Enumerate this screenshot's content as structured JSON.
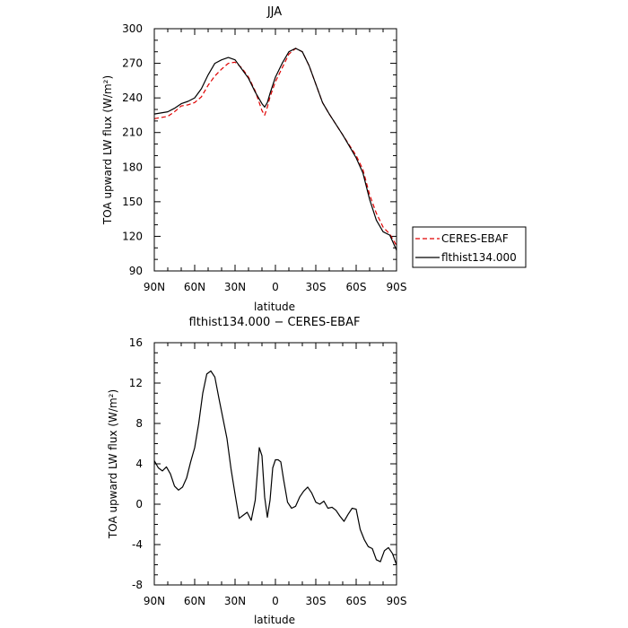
{
  "chart_data": [
    {
      "type": "line",
      "title": "JJA",
      "xlabel": "latitude",
      "ylabel": "TOA upward LW flux (W/m²)",
      "xlim": [
        90,
        -90
      ],
      "ylim": [
        90,
        300
      ],
      "x_tick_values": [
        90,
        60,
        30,
        0,
        -30,
        -60,
        -90
      ],
      "x_tick_labels": [
        "90N",
        "60N",
        "30N",
        "0",
        "30S",
        "60S",
        "90S"
      ],
      "y_ticks": [
        90,
        120,
        150,
        180,
        210,
        240,
        270,
        300
      ],
      "legend_position": "right",
      "series": [
        {
          "name": "CERES-EBAF",
          "color": "#e00000",
          "dash": "dashed",
          "x": [
            90,
            85,
            80,
            75,
            70,
            65,
            60,
            55,
            50,
            45,
            40,
            35,
            30,
            25,
            20,
            15,
            10,
            8,
            6,
            4,
            0,
            -5,
            -10,
            -15,
            -20,
            -25,
            -30,
            -35,
            -40,
            -45,
            -50,
            -55,
            -60,
            -65,
            -70,
            -75,
            -80,
            -85,
            -90
          ],
          "y": [
            222,
            223,
            224,
            228,
            233,
            234,
            236,
            241,
            251,
            259,
            265,
            270,
            271,
            266,
            258,
            246,
            229,
            225,
            232,
            241,
            254,
            266,
            278,
            283,
            280,
            268,
            252,
            236,
            226,
            217,
            208,
            199,
            190,
            178,
            156,
            140,
            128,
            122,
            112
          ]
        },
        {
          "name": "flthist134.000",
          "color": "#000000",
          "dash": "solid",
          "x": [
            90,
            85,
            80,
            75,
            70,
            65,
            60,
            55,
            50,
            45,
            40,
            35,
            30,
            25,
            20,
            15,
            10,
            8,
            6,
            4,
            0,
            -5,
            -10,
            -15,
            -20,
            -25,
            -30,
            -35,
            -40,
            -45,
            -50,
            -55,
            -60,
            -65,
            -70,
            -75,
            -80,
            -85,
            -90
          ],
          "y": [
            226,
            227,
            228,
            231,
            235,
            237,
            240,
            248,
            260,
            270,
            273,
            275,
            273,
            265,
            257,
            245,
            235,
            232,
            236,
            244,
            258,
            270,
            280,
            283,
            280,
            268,
            252,
            236,
            226,
            217,
            208,
            198,
            188,
            175,
            152,
            134,
            124,
            121,
            108
          ]
        }
      ]
    },
    {
      "type": "line",
      "title": "flthist134.000 − CERES-EBAF",
      "xlabel": "latitude",
      "ylabel": "TOA upward LW flux (W/m²)",
      "xlim": [
        90,
        -90
      ],
      "ylim": [
        -8,
        16
      ],
      "x_tick_values": [
        90,
        60,
        30,
        0,
        -30,
        -60,
        -90
      ],
      "x_tick_labels": [
        "90N",
        "60N",
        "30N",
        "0",
        "30S",
        "60S",
        "90S"
      ],
      "y_ticks": [
        -8,
        -4,
        0,
        4,
        8,
        12,
        16
      ],
      "series": [
        {
          "color": "#000000",
          "x": [
            90,
            87,
            84,
            81,
            78,
            75,
            72,
            69,
            66,
            63,
            60,
            57,
            54,
            51,
            48,
            45,
            42,
            39,
            36,
            33,
            30,
            27,
            24,
            21,
            18,
            15,
            12,
            10,
            8,
            6,
            4,
            2,
            0,
            -2,
            -4,
            -6,
            -9,
            -12,
            -15,
            -18,
            -21,
            -24,
            -27,
            -30,
            -33,
            -36,
            -39,
            -42,
            -45,
            -48,
            -51,
            -54,
            -57,
            -60,
            -63,
            -66,
            -69,
            -72,
            -75,
            -78,
            -81,
            -84,
            -87,
            -90
          ],
          "y": [
            4.3,
            3.6,
            3.3,
            3.7,
            3.0,
            1.8,
            1.4,
            1.7,
            2.6,
            4.2,
            5.6,
            8.0,
            11.0,
            12.9,
            13.2,
            12.6,
            10.5,
            8.5,
            6.5,
            3.5,
            1.0,
            -1.4,
            -1.1,
            -0.8,
            -1.6,
            0.4,
            5.6,
            4.8,
            0.7,
            -1.3,
            0.4,
            3.6,
            4.4,
            4.4,
            4.2,
            2.5,
            0.2,
            -0.4,
            -0.2,
            0.7,
            1.3,
            1.7,
            1.1,
            0.2,
            0.0,
            0.3,
            -0.4,
            -0.3,
            -0.6,
            -1.2,
            -1.7,
            -1.0,
            -0.4,
            -0.5,
            -2.5,
            -3.5,
            -4.2,
            -4.4,
            -5.5,
            -5.7,
            -4.6,
            -4.3,
            -4.9,
            -6.0
          ]
        }
      ]
    }
  ]
}
